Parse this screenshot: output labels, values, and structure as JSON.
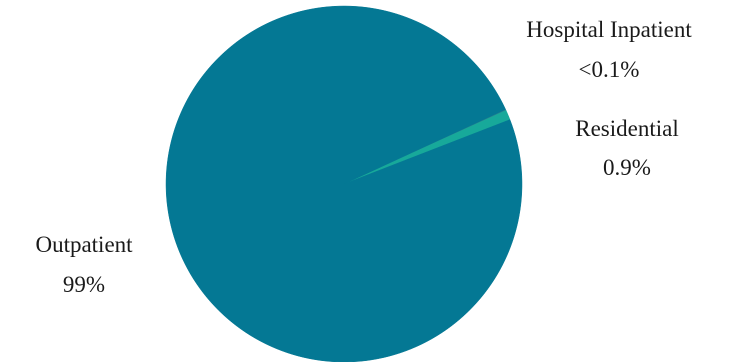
{
  "chart_data": {
    "type": "pie",
    "title": "",
    "slices": [
      {
        "name": "Outpatient",
        "value_label": "99%",
        "value": 99.0,
        "color": "#047894"
      },
      {
        "name": "Residential",
        "value_label": "0.9%",
        "value": 0.9,
        "color": "#17a99a"
      },
      {
        "name": "Hospital Inpatient",
        "value_label": "<0.1%",
        "value": 0.1,
        "color": "#2a7f8e"
      }
    ],
    "legend": "none",
    "labels": "outside"
  }
}
